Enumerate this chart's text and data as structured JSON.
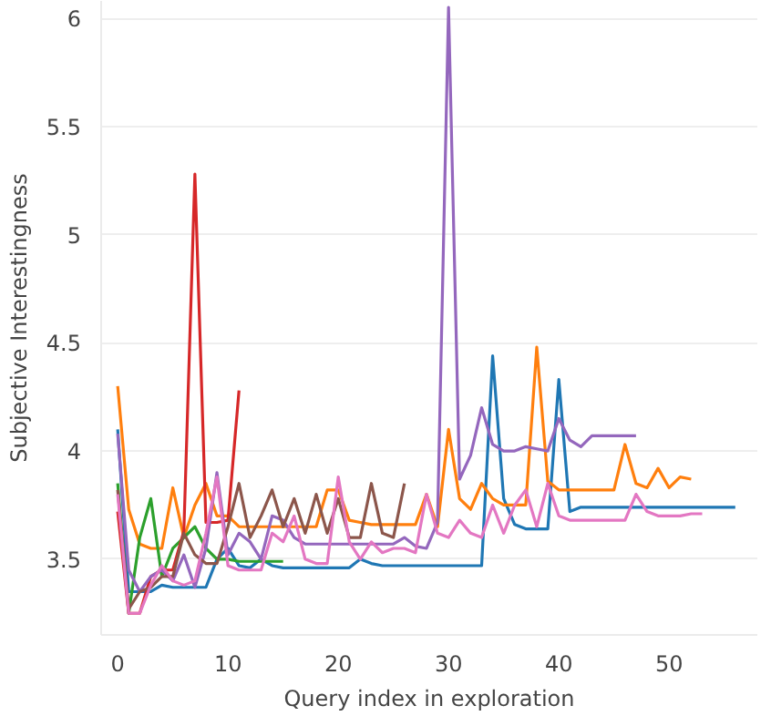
{
  "chart_data": {
    "type": "line",
    "xlabel": "Query index in exploration",
    "ylabel": "Subjective Interestingness",
    "xlim": [
      -1.5,
      58
    ],
    "xticks": [
      0,
      10,
      20,
      30,
      40,
      50
    ],
    "ylim": [
      3.15,
      6.08
    ],
    "yticks": [
      3.5,
      4,
      4.5,
      5,
      5.5,
      6
    ],
    "grid": "y",
    "marker": "none",
    "line_style": "solid",
    "series": [
      {
        "color": "#1f77b4",
        "x": [
          0,
          1,
          2,
          3,
          4,
          5,
          6,
          7,
          8,
          9,
          10,
          11,
          12,
          13,
          14,
          15,
          16,
          17,
          18,
          19,
          20,
          21,
          22,
          23,
          24,
          25,
          26,
          27,
          28,
          29,
          30,
          31,
          32,
          33,
          34,
          35,
          36,
          37,
          38,
          39,
          40,
          41,
          42,
          43,
          44,
          45,
          46,
          47,
          48,
          49,
          50,
          51,
          52,
          53,
          54,
          55,
          56
        ],
        "values": [
          4.1,
          3.35,
          3.35,
          3.35,
          3.38,
          3.37,
          3.37,
          3.37,
          3.37,
          3.5,
          3.55,
          3.47,
          3.46,
          3.5,
          3.47,
          3.46,
          3.46,
          3.46,
          3.46,
          3.46,
          3.46,
          3.46,
          3.5,
          3.48,
          3.47,
          3.47,
          3.47,
          3.47,
          3.47,
          3.47,
          3.47,
          3.47,
          3.47,
          3.47,
          4.44,
          3.78,
          3.66,
          3.64,
          3.64,
          3.64,
          4.33,
          3.72,
          3.74,
          3.74,
          3.74,
          3.74,
          3.74,
          3.74,
          3.74,
          3.74,
          3.74,
          3.74,
          3.74,
          3.74,
          3.74,
          3.74,
          3.74
        ]
      },
      {
        "color": "#ff7f0e",
        "x": [
          0,
          1,
          2,
          3,
          4,
          5,
          6,
          7,
          8,
          9,
          10,
          11,
          12,
          13,
          14,
          15,
          16,
          17,
          18,
          19,
          20,
          21,
          22,
          23,
          24,
          25,
          26,
          27,
          28,
          29,
          30,
          31,
          32,
          33,
          34,
          35,
          36,
          37,
          38,
          39,
          40,
          41,
          42,
          43,
          44,
          45,
          46,
          47,
          48,
          49,
          50,
          51,
          52
        ],
        "values": [
          4.3,
          3.73,
          3.57,
          3.55,
          3.55,
          3.83,
          3.6,
          3.75,
          3.85,
          3.7,
          3.7,
          3.65,
          3.65,
          3.65,
          3.65,
          3.65,
          3.65,
          3.65,
          3.65,
          3.82,
          3.82,
          3.68,
          3.67,
          3.66,
          3.66,
          3.66,
          3.66,
          3.66,
          3.8,
          3.65,
          4.1,
          3.78,
          3.73,
          3.85,
          3.78,
          3.75,
          3.75,
          3.75,
          4.48,
          3.86,
          3.82,
          3.82,
          3.82,
          3.82,
          3.82,
          3.82,
          4.03,
          3.85,
          3.83,
          3.92,
          3.83,
          3.88,
          3.87
        ]
      },
      {
        "color": "#2ca02c",
        "x": [
          0,
          1,
          2,
          3,
          4,
          5,
          6,
          7,
          8,
          9,
          10,
          11,
          12,
          13,
          14,
          15
        ],
        "values": [
          3.85,
          3.25,
          3.6,
          3.78,
          3.42,
          3.55,
          3.6,
          3.65,
          3.55,
          3.5,
          3.5,
          3.49,
          3.49,
          3.49,
          3.49,
          3.49
        ]
      },
      {
        "color": "#d62728",
        "x": [
          0,
          1,
          2,
          3,
          4,
          5,
          6,
          7,
          8,
          9,
          10,
          11
        ],
        "values": [
          3.72,
          3.25,
          3.25,
          3.42,
          3.45,
          3.45,
          3.63,
          5.28,
          3.67,
          3.67,
          3.68,
          4.28
        ]
      },
      {
        "color": "#9467bd",
        "x": [
          0,
          1,
          2,
          3,
          4,
          5,
          6,
          7,
          8,
          9,
          10,
          11,
          12,
          13,
          14,
          15,
          16,
          17,
          18,
          19,
          20,
          21,
          22,
          23,
          24,
          25,
          26,
          27,
          28,
          29,
          30,
          31,
          32,
          33,
          34,
          35,
          36,
          37,
          38,
          39,
          40,
          41,
          42,
          43,
          44,
          45,
          46,
          47
        ],
        "values": [
          4.08,
          3.45,
          3.35,
          3.42,
          3.45,
          3.4,
          3.52,
          3.37,
          3.55,
          3.9,
          3.52,
          3.62,
          3.58,
          3.5,
          3.7,
          3.68,
          3.6,
          3.57,
          3.57,
          3.57,
          3.57,
          3.57,
          3.57,
          3.57,
          3.57,
          3.57,
          3.6,
          3.56,
          3.55,
          3.67,
          6.05,
          3.87,
          3.98,
          4.2,
          4.03,
          4.0,
          4.0,
          4.02,
          4.01,
          4.0,
          4.15,
          4.05,
          4.02,
          4.07,
          4.07,
          4.07,
          4.07,
          4.07
        ]
      },
      {
        "color": "#8c564b",
        "x": [
          0,
          1,
          2,
          3,
          4,
          5,
          6,
          7,
          8,
          9,
          10,
          11,
          12,
          13,
          14,
          15,
          16,
          17,
          18,
          19,
          20,
          21,
          22,
          23,
          24,
          25,
          26
        ],
        "values": [
          3.82,
          3.27,
          3.35,
          3.37,
          3.42,
          3.42,
          3.62,
          3.52,
          3.48,
          3.48,
          3.65,
          3.85,
          3.6,
          3.7,
          3.82,
          3.65,
          3.78,
          3.62,
          3.8,
          3.62,
          3.78,
          3.6,
          3.6,
          3.85,
          3.62,
          3.6,
          3.85
        ]
      },
      {
        "color": "#e377c2",
        "x": [
          0,
          1,
          2,
          3,
          4,
          5,
          6,
          7,
          8,
          9,
          10,
          11,
          12,
          13,
          14,
          15,
          16,
          17,
          18,
          19,
          20,
          21,
          22,
          23,
          24,
          25,
          26,
          27,
          28,
          29,
          30,
          31,
          32,
          33,
          34,
          35,
          36,
          37,
          38,
          39,
          40,
          41,
          42,
          43,
          44,
          45,
          46,
          47,
          48,
          49,
          50,
          51,
          52,
          53
        ],
        "values": [
          3.8,
          3.25,
          3.25,
          3.38,
          3.47,
          3.4,
          3.38,
          3.4,
          3.62,
          3.88,
          3.47,
          3.45,
          3.45,
          3.45,
          3.62,
          3.58,
          3.7,
          3.5,
          3.48,
          3.48,
          3.88,
          3.58,
          3.5,
          3.58,
          3.53,
          3.55,
          3.55,
          3.53,
          3.8,
          3.62,
          3.6,
          3.68,
          3.62,
          3.6,
          3.75,
          3.62,
          3.75,
          3.82,
          3.65,
          3.85,
          3.7,
          3.68,
          3.68,
          3.68,
          3.68,
          3.68,
          3.68,
          3.8,
          3.72,
          3.7,
          3.7,
          3.7,
          3.71,
          3.71
        ]
      }
    ]
  }
}
